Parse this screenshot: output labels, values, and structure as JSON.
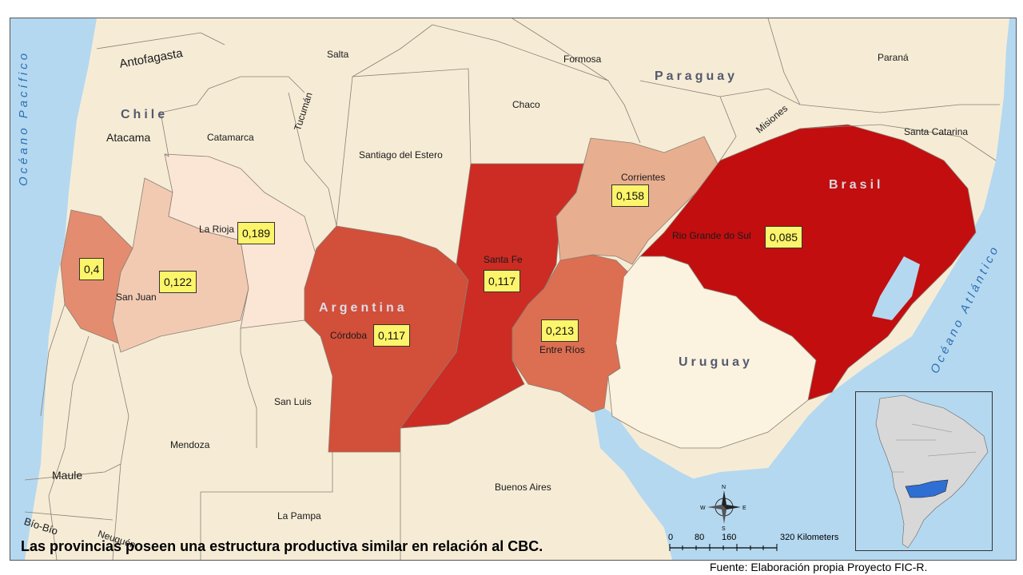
{
  "map": {
    "labels": {
      "antofagasta": "Antofagasta",
      "salta": "Salta",
      "formosa": "Formosa",
      "parana": "Paraná",
      "chaco": "Chaco",
      "tucuman": "Tucumán",
      "misiones": "Misiones",
      "santa_catarina": "Santa Catarina",
      "atacama": "Atacama",
      "catamarca": "Catamarca",
      "santiago_del_estero": "Santiago del Estero",
      "corrientes": "Corrientes",
      "la_rioja": "La Rioja",
      "rio_grande_do_sul": "Rio Grande do Sul",
      "santa_fe": "Santa Fe",
      "san_juan": "San Juan",
      "cordoba": "Córdoba",
      "entre_rios": "Entre Ríos",
      "san_luis": "San Luis",
      "mendoza": "Mendoza",
      "buenos_aires": "Buenos Aires",
      "maule": "Maule",
      "la_pampa": "La Pampa",
      "bio_bio": "Bío-Bío",
      "neuquen": "Neuquén"
    },
    "countries": {
      "chile": "Chile",
      "paraguay": "Paraguay",
      "brasil": "Brasil",
      "argentina": "Argentina",
      "uruguay": "Uruguay"
    },
    "oceans": {
      "pacific": "Océano Pacífico",
      "atlantic": "Océano Atlántico"
    },
    "values": {
      "rio_grande_do_sul": "0,085",
      "cordoba": "0,117",
      "santa_fe": "0,117",
      "san_juan": "0,122",
      "corrientes": "0,158",
      "la_rioja": "0,189",
      "entre_rios": "0,213",
      "west": "0,4"
    },
    "colors": {
      "background_land": "#f6ecd6",
      "water": "#b4d8f0",
      "darkest_red": "#c20e0f",
      "red": "#cc2c24",
      "red_orange": "#d24f3a",
      "salmon": "#dc6e52",
      "light_salmon": "#e48c70",
      "peach": "#e8ae90",
      "light_peach": "#f2cab2",
      "palest": "#fbe6d6",
      "value_box": "#fcf46a"
    },
    "compass": {
      "n": "N",
      "s": "S",
      "e": "E",
      "w": "W"
    },
    "scale": {
      "ticks": [
        "0",
        "80",
        "160",
        "320 Kilometers"
      ]
    }
  },
  "caption": "Las provincias poseen una estructura productiva similar en relación al CBC.",
  "source": "Fuente: Elaboración propia Proyecto FIC-R."
}
